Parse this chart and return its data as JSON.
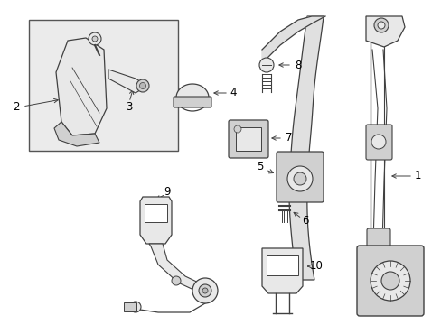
{
  "bg_color": "#ffffff",
  "fig_width": 4.89,
  "fig_height": 3.6,
  "dpi": 100,
  "lc": "#404040",
  "lw": 1.0,
  "fill_light": "#e8e8e8",
  "fill_mid": "#d0d0d0",
  "fill_dark": "#b8b8b8",
  "inset_fill": "#ebebeb",
  "inset_edge": "#606060"
}
